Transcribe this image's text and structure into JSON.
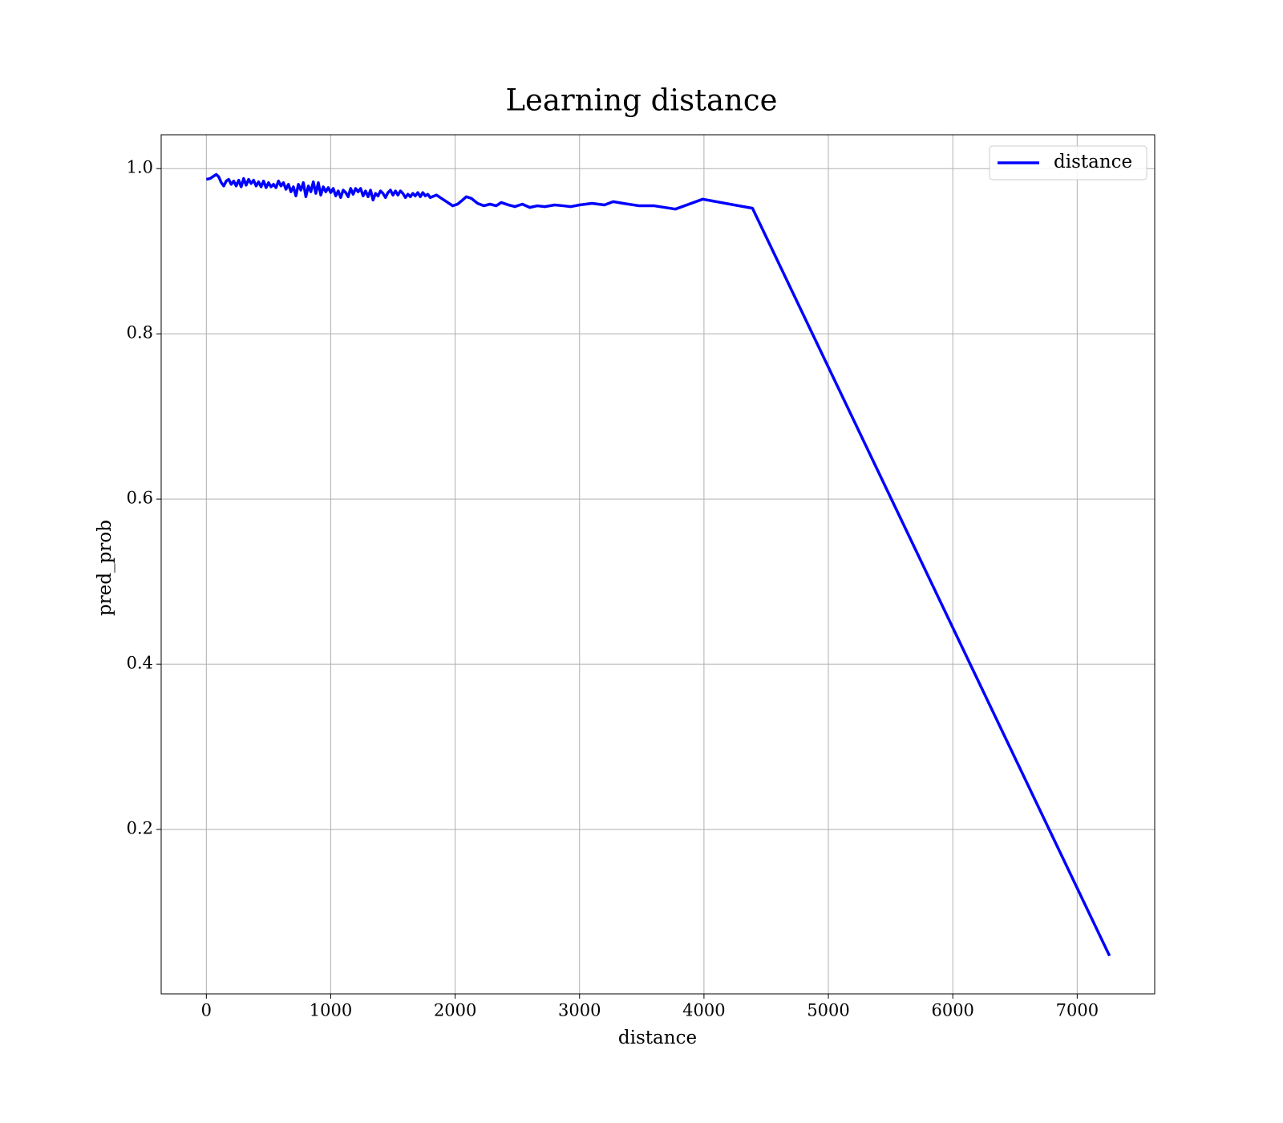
{
  "chart_data": {
    "type": "line",
    "title": "Learning distance",
    "xlabel": "distance",
    "ylabel": "pred_prob",
    "xlim": [
      -363,
      7623
    ],
    "ylim": [
      0.001,
      1.041
    ],
    "xticks": [
      0,
      1000,
      2000,
      3000,
      4000,
      5000,
      6000,
      7000
    ],
    "yticks": [
      0.2,
      0.4,
      0.6,
      0.8,
      {
        "value": 1,
        "label": "1.0"
      }
    ],
    "grid": true,
    "legend": "upper right",
    "x": [
      0,
      30,
      60,
      80,
      100,
      120,
      140,
      160,
      180,
      200,
      220,
      240,
      260,
      280,
      300,
      320,
      340,
      360,
      380,
      400,
      420,
      440,
      460,
      480,
      500,
      520,
      540,
      560,
      580,
      600,
      620,
      640,
      660,
      680,
      700,
      720,
      740,
      760,
      780,
      800,
      820,
      840,
      860,
      880,
      900,
      920,
      940,
      960,
      980,
      1000,
      1020,
      1040,
      1060,
      1080,
      1100,
      1120,
      1140,
      1160,
      1180,
      1200,
      1220,
      1240,
      1260,
      1280,
      1300,
      1320,
      1340,
      1360,
      1380,
      1400,
      1420,
      1440,
      1460,
      1480,
      1500,
      1520,
      1540,
      1560,
      1580,
      1600,
      1620,
      1640,
      1660,
      1680,
      1700,
      1720,
      1740,
      1760,
      1780,
      1800,
      1850,
      1900,
      1950,
      1980,
      2020,
      2060,
      2090,
      2130,
      2180,
      2230,
      2280,
      2330,
      2370,
      2430,
      2480,
      2540,
      2600,
      2660,
      2720,
      2800,
      2870,
      2930,
      3000,
      3100,
      3200,
      3270,
      3350,
      3480,
      3600,
      3770,
      3990,
      4390,
      7260
    ],
    "series": [
      {
        "name": "distance",
        "color": "#0000ff",
        "values": [
          0.987,
          0.988,
          0.991,
          0.993,
          0.99,
          0.983,
          0.979,
          0.985,
          0.987,
          0.981,
          0.985,
          0.979,
          0.986,
          0.978,
          0.988,
          0.98,
          0.987,
          0.982,
          0.986,
          0.979,
          0.984,
          0.978,
          0.985,
          0.977,
          0.983,
          0.978,
          0.981,
          0.977,
          0.985,
          0.979,
          0.983,
          0.975,
          0.981,
          0.972,
          0.978,
          0.967,
          0.981,
          0.974,
          0.983,
          0.966,
          0.979,
          0.972,
          0.984,
          0.97,
          0.983,
          0.968,
          0.978,
          0.972,
          0.977,
          0.971,
          0.976,
          0.967,
          0.973,
          0.965,
          0.974,
          0.971,
          0.966,
          0.976,
          0.969,
          0.976,
          0.972,
          0.976,
          0.967,
          0.973,
          0.966,
          0.974,
          0.962,
          0.97,
          0.967,
          0.973,
          0.97,
          0.965,
          0.971,
          0.974,
          0.968,
          0.973,
          0.968,
          0.973,
          0.97,
          0.965,
          0.969,
          0.966,
          0.97,
          0.967,
          0.971,
          0.966,
          0.971,
          0.967,
          0.969,
          0.965,
          0.968,
          0.963,
          0.958,
          0.955,
          0.957,
          0.962,
          0.966,
          0.964,
          0.958,
          0.955,
          0.957,
          0.955,
          0.959,
          0.956,
          0.954,
          0.957,
          0.953,
          0.955,
          0.954,
          0.956,
          0.955,
          0.954,
          0.956,
          0.958,
          0.956,
          0.96,
          0.958,
          0.955,
          0.955,
          0.951,
          0.963,
          0.952,
          0.047
        ]
      }
    ]
  }
}
